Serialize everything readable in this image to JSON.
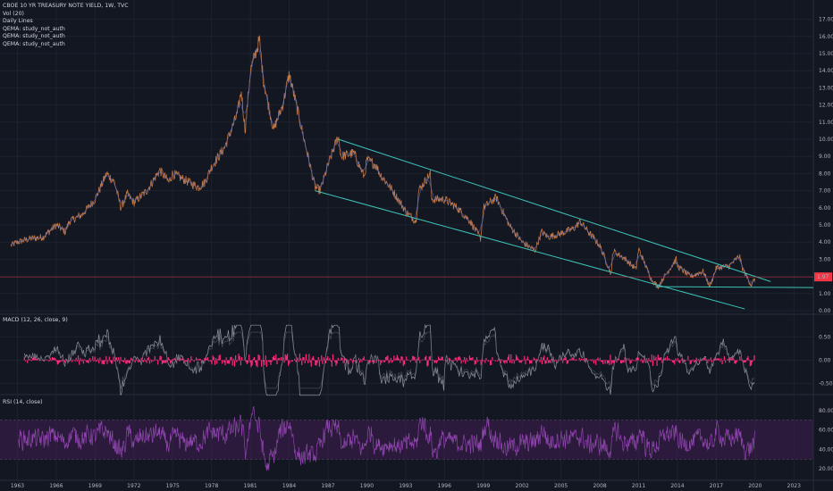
{
  "legend": {
    "title": "CBOE 10 YR TREASURY NOTE YIELD, 1W, TVC",
    "lines": [
      "Vol (20)",
      "Daily Lines",
      "QEMA: study_not_auth",
      "QEMA: study_not_auth",
      "QEMA: study_not_auth"
    ]
  },
  "macd_label": "MACD (12, 26, close, 9)",
  "rsi_label": "RSI (14, close)",
  "price_badge": "1.97",
  "colors": {
    "background": "#131722",
    "channel": "#3cc4b8",
    "price_line": "#f23645",
    "macd_hist": "#ff2a7a",
    "macd_line": "#b2b5be",
    "rsi_line": "#8e44ad",
    "rsi_band": "#4a1e5c"
  },
  "chart_data": [
    {
      "type": "line",
      "title": "CBOE 10 YR TREASURY NOTE YIELD, 1W, TVC",
      "x_ticks": [
        "1963",
        "1966",
        "1969",
        "1972",
        "1975",
        "1978",
        "1981",
        "1984",
        "1987",
        "1990",
        "1993",
        "1996",
        "1999",
        "2002",
        "2005",
        "2008",
        "2011",
        "2014",
        "2017",
        "2020",
        "2023"
      ],
      "y_ticks": [
        "0.00",
        "1.00",
        "2.00",
        "3.00",
        "4.00",
        "5.00",
        "6.00",
        "7.00",
        "8.00",
        "9.00",
        "10.00",
        "11.00",
        "12.00",
        "13.00",
        "14.00",
        "15.00",
        "16.00",
        "17.00"
      ],
      "ylim": [
        0,
        17.5
      ],
      "xlim": [
        1962,
        2024.5
      ],
      "series": [
        {
          "x": [
            1962.5,
            1963,
            1964,
            1965,
            1966,
            1966.7,
            1967,
            1968,
            1969,
            1969.9,
            1970.5,
            1971,
            1971.5,
            1972,
            1973,
            1974,
            1974.7,
            1975,
            1976,
            1977,
            1977.5,
            1978,
            1979,
            1980,
            1980.3,
            1980.6,
            1981,
            1981.7,
            1982,
            1982.8,
            1983,
            1983.5,
            1984,
            1984.4,
            1985,
            1986,
            1986.4,
            1987,
            1987.8,
            1988,
            1989,
            1989.8,
            1990,
            1990.7,
            1991,
            1992,
            1993,
            1993.8,
            1994,
            1994.9,
            1995,
            1996,
            1997,
            1998,
            1998.8,
            1999,
            2000,
            2001,
            2002,
            2003,
            2003.5,
            2004,
            2005,
            2006,
            2006.5,
            2007,
            2008,
            2008.9,
            2009,
            2010,
            2010.8,
            2011,
            2012,
            2012.5,
            2013,
            2013.9,
            2014,
            2015,
            2016,
            2016.5,
            2017,
            2018,
            2018.8,
            2019,
            2019.7,
            2020
          ],
          "y": [
            3.8,
            4.0,
            4.2,
            4.3,
            5.0,
            4.6,
            5.2,
            5.6,
            6.5,
            8.0,
            7.5,
            6.0,
            6.8,
            6.3,
            7.0,
            8.2,
            7.5,
            8.0,
            7.6,
            7.2,
            7.5,
            8.4,
            9.5,
            11.5,
            12.8,
            10.5,
            14.0,
            15.8,
            13.5,
            10.5,
            11.0,
            12.0,
            13.8,
            12.5,
            10.5,
            7.2,
            7.0,
            8.5,
            10.2,
            9.0,
            9.2,
            7.8,
            8.8,
            8.5,
            8.0,
            7.0,
            5.8,
            5.2,
            7.0,
            8.0,
            6.5,
            6.5,
            6.0,
            5.2,
            4.2,
            6.0,
            6.6,
            5.0,
            4.0,
            3.5,
            4.6,
            4.3,
            4.5,
            4.8,
            5.2,
            4.7,
            3.8,
            2.1,
            3.5,
            3.0,
            2.4,
            3.6,
            1.8,
            1.4,
            2.0,
            3.0,
            2.6,
            2.0,
            2.3,
            1.4,
            2.5,
            2.6,
            3.2,
            2.5,
            1.5,
            1.9
          ]
        }
      ]
    },
    {
      "type": "line",
      "title": "MACD (12, 26, close, 9)",
      "y_ticks": [
        "0.50",
        "0.00",
        "-0.50"
      ],
      "ylim": [
        -0.85,
        0.85
      ]
    },
    {
      "type": "line",
      "title": "RSI (14, close)",
      "y_ticks": [
        "80.00",
        "60.00",
        "40.00",
        "20.00"
      ],
      "band": [
        30,
        70
      ],
      "ylim": [
        10,
        90
      ]
    }
  ]
}
